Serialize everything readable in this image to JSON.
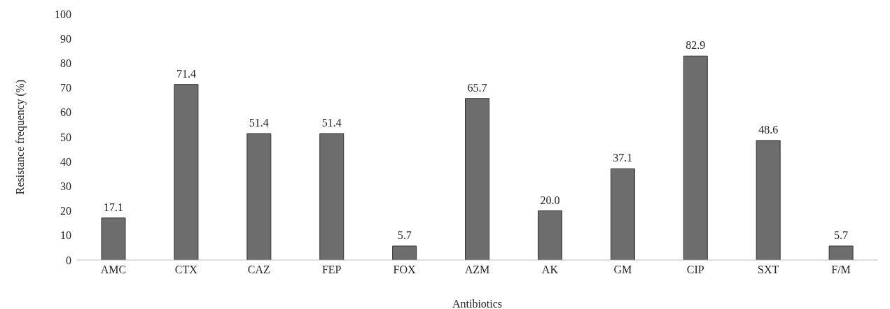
{
  "chart_data": {
    "type": "bar",
    "xlabel": "Antibiotics",
    "ylabel": "Resistance frequency (%)",
    "categories": [
      "AMC",
      "CTX",
      "CAZ",
      "FEP",
      "FOX",
      "AZM",
      "AK",
      "GM",
      "CIP",
      "SXT",
      "F/M"
    ],
    "values": [
      17.1,
      71.4,
      51.4,
      51.4,
      5.7,
      65.7,
      20.0,
      37.1,
      82.9,
      48.6,
      5.7
    ],
    "value_labels": [
      "17.1",
      "71.4",
      "51.4",
      "51.4",
      "5.7",
      "65.7",
      "20.0",
      "37.1",
      "82.9",
      "48.6",
      "5.7"
    ],
    "color": "#6d6d6d",
    "ylim": [
      0,
      100
    ],
    "yticks": [
      0,
      10,
      20,
      30,
      40,
      50,
      60,
      70,
      80,
      90,
      100
    ],
    "grid": false,
    "legend": false
  }
}
